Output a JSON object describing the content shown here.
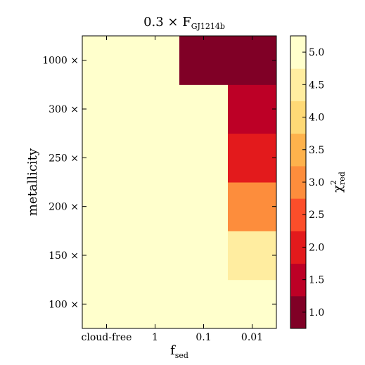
{
  "chart_data": {
    "type": "heatmap",
    "title_main": "0.3 × F",
    "title_sub": "GJ1214b",
    "xlabel_main": "f",
    "xlabel_sub": "sed",
    "ylabel": "metallicity",
    "x_categories": [
      "cloud-free",
      "1",
      "0.1",
      "0.01"
    ],
    "y_categories": [
      "100 ×",
      "150 ×",
      "200 ×",
      "250 ×",
      "300 ×",
      "1000 ×"
    ],
    "colorbar": {
      "label_main": "χ",
      "label_sup": "2",
      "label_sub": "red",
      "range": [
        0.75,
        5.25
      ],
      "ticks": [
        "1.0",
        "1.5",
        "2.0",
        "2.5",
        "3.0",
        "3.5",
        "4.0",
        "4.5",
        "5.0"
      ],
      "levels": [
        {
          "from": 0.75,
          "to": 1.25,
          "color": "#800026"
        },
        {
          "from": 1.25,
          "to": 1.75,
          "color": "#bd0026"
        },
        {
          "from": 1.75,
          "to": 2.25,
          "color": "#e31a1c"
        },
        {
          "from": 2.25,
          "to": 2.75,
          "color": "#fc4e2a"
        },
        {
          "from": 2.75,
          "to": 3.25,
          "color": "#fd8d3c"
        },
        {
          "from": 3.25,
          "to": 3.75,
          "color": "#feb24c"
        },
        {
          "from": 3.75,
          "to": 4.25,
          "color": "#fed976"
        },
        {
          "from": 4.25,
          "to": 4.75,
          "color": "#ffeda0"
        },
        {
          "from": 4.75,
          "to": 5.25,
          "color": "#ffffcc"
        }
      ]
    },
    "cells": [
      {
        "x": "cloud-free",
        "y": "100 ×",
        "value": 5.2
      },
      {
        "x": "1",
        "y": "100 ×",
        "value": 5.2
      },
      {
        "x": "0.1",
        "y": "100 ×",
        "value": 5.2
      },
      {
        "x": "0.01",
        "y": "100 ×",
        "value": 5.2
      },
      {
        "x": "cloud-free",
        "y": "150 ×",
        "value": 5.2
      },
      {
        "x": "1",
        "y": "150 ×",
        "value": 5.2
      },
      {
        "x": "0.1",
        "y": "150 ×",
        "value": 5.2
      },
      {
        "x": "0.01",
        "y": "150 ×",
        "value": 4.5
      },
      {
        "x": "cloud-free",
        "y": "200 ×",
        "value": 5.2
      },
      {
        "x": "1",
        "y": "200 ×",
        "value": 5.2
      },
      {
        "x": "0.1",
        "y": "200 ×",
        "value": 5.2
      },
      {
        "x": "0.01",
        "y": "200 ×",
        "value": 3.0
      },
      {
        "x": "cloud-free",
        "y": "250 ×",
        "value": 5.2
      },
      {
        "x": "1",
        "y": "250 ×",
        "value": 5.2
      },
      {
        "x": "0.1",
        "y": "250 ×",
        "value": 5.2
      },
      {
        "x": "0.01",
        "y": "250 ×",
        "value": 2.0
      },
      {
        "x": "cloud-free",
        "y": "300 ×",
        "value": 5.2
      },
      {
        "x": "1",
        "y": "300 ×",
        "value": 5.2
      },
      {
        "x": "0.1",
        "y": "300 ×",
        "value": 5.2
      },
      {
        "x": "0.01",
        "y": "300 ×",
        "value": 1.5
      },
      {
        "x": "cloud-free",
        "y": "1000 ×",
        "value": 5.2
      },
      {
        "x": "1",
        "y": "1000 ×",
        "value": 5.2
      },
      {
        "x": "0.1",
        "y": "1000 ×",
        "value": 1.0
      },
      {
        "x": "0.01",
        "y": "1000 ×",
        "value": 1.0
      }
    ],
    "overlay_cells": [
      {
        "x_start": 2,
        "x_end": 3,
        "y": "1000 ×",
        "value": 1.0
      }
    ]
  }
}
